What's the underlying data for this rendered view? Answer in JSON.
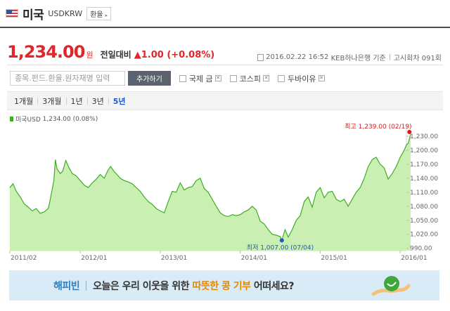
{
  "header": {
    "country": "미국",
    "code": "USDKRW",
    "exchange_button": "환율",
    "flag": "us-flag-icon"
  },
  "quote": {
    "price": "1,234.00",
    "unit": "원",
    "change_label": "전일대비",
    "change": "1.00 (+0.08%)",
    "direction": "up",
    "color_up": "#e0262a"
  },
  "source": {
    "datetime": "2016.02.22 16:52",
    "bank": "KEB하나은행 기준",
    "round": "고시회차 091회"
  },
  "search": {
    "placeholder": "종목.펀드.환율.원자재명 입력",
    "add_button": "추가하기"
  },
  "compare": [
    {
      "label": "국제 금"
    },
    {
      "label": "코스피"
    },
    {
      "label": "두바이유"
    }
  ],
  "periods": [
    {
      "label": "1개월",
      "active": false
    },
    {
      "label": "3개월",
      "active": false
    },
    {
      "label": "1년",
      "active": false
    },
    {
      "label": "3년",
      "active": false
    },
    {
      "label": "5년",
      "active": true
    }
  ],
  "legend": {
    "label": "미국USD",
    "value": "1,234.00 (0.08%)",
    "color": "#3fae25"
  },
  "chart_data": {
    "type": "area",
    "grid": false,
    "ylim": [
      985,
      1245
    ],
    "yticks": [
      990,
      1020,
      1050,
      1080,
      1110,
      1140,
      1170,
      1200,
      1230
    ],
    "ytick_labels": [
      "990.00",
      "1,020.00",
      "1,050.00",
      "1,080.00",
      "1,110.00",
      "1,140.00",
      "1,170.00",
      "1,200.00",
      "1,230.00"
    ],
    "xlim": [
      2011.12,
      2016.06
    ],
    "xticks": [
      2011.12,
      2012.0,
      2013.0,
      2014.0,
      2015.0,
      2016.0
    ],
    "xtick_labels": [
      "2011/02",
      "2012/01",
      "2013/01",
      "2014/01",
      "2015/01",
      "2016/01"
    ],
    "series": [
      {
        "name": "미국USD",
        "color": "#3fae25",
        "fill": "#c9efb2",
        "x": [
          2011.12,
          2011.16,
          2011.2,
          2011.25,
          2011.3,
          2011.35,
          2011.4,
          2011.45,
          2011.5,
          2011.55,
          2011.6,
          2011.62,
          2011.67,
          2011.69,
          2011.71,
          2011.75,
          2011.78,
          2011.82,
          2011.86,
          2011.9,
          2011.95,
          2012.0,
          2012.05,
          2012.1,
          2012.15,
          2012.2,
          2012.25,
          2012.3,
          2012.35,
          2012.38,
          2012.42,
          2012.46,
          2012.5,
          2012.55,
          2012.6,
          2012.65,
          2012.7,
          2012.75,
          2012.8,
          2012.85,
          2012.9,
          2012.95,
          2013.0,
          2013.05,
          2013.1,
          2013.15,
          2013.2,
          2013.25,
          2013.3,
          2013.35,
          2013.4,
          2013.45,
          2013.5,
          2013.55,
          2013.6,
          2013.65,
          2013.7,
          2013.75,
          2013.8,
          2013.85,
          2013.9,
          2013.95,
          2014.0,
          2014.05,
          2014.1,
          2014.15,
          2014.2,
          2014.25,
          2014.3,
          2014.35,
          2014.4,
          2014.45,
          2014.5,
          2014.52,
          2014.56,
          2014.6,
          2014.65,
          2014.7,
          2014.75,
          2014.8,
          2014.85,
          2014.9,
          2014.95,
          2015.0,
          2015.05,
          2015.1,
          2015.15,
          2015.2,
          2015.25,
          2015.3,
          2015.35,
          2015.4,
          2015.45,
          2015.5,
          2015.55,
          2015.6,
          2015.65,
          2015.7,
          2015.75,
          2015.8,
          2015.85,
          2015.9,
          2015.95,
          2016.0,
          2016.05,
          2016.08,
          2016.1,
          2016.13
        ],
        "y": [
          1120,
          1128,
          1112,
          1100,
          1085,
          1078,
          1070,
          1075,
          1065,
          1068,
          1075,
          1090,
          1135,
          1180,
          1160,
          1150,
          1155,
          1178,
          1162,
          1150,
          1145,
          1135,
          1125,
          1120,
          1130,
          1138,
          1148,
          1140,
          1158,
          1165,
          1155,
          1148,
          1140,
          1135,
          1132,
          1128,
          1120,
          1112,
          1100,
          1090,
          1084,
          1075,
          1070,
          1066,
          1090,
          1112,
          1110,
          1130,
          1115,
          1120,
          1122,
          1135,
          1140,
          1118,
          1110,
          1095,
          1080,
          1066,
          1060,
          1058,
          1062,
          1060,
          1062,
          1068,
          1072,
          1080,
          1072,
          1048,
          1042,
          1030,
          1020,
          1018,
          1015,
          1007,
          1030,
          1014,
          1030,
          1050,
          1060,
          1090,
          1100,
          1078,
          1110,
          1120,
          1098,
          1110,
          1112,
          1095,
          1090,
          1095,
          1080,
          1095,
          1110,
          1120,
          1140,
          1165,
          1180,
          1185,
          1170,
          1162,
          1138,
          1150,
          1165,
          1185,
          1200,
          1212,
          1215,
          1234
        ]
      }
    ],
    "annotations": [
      {
        "kind": "max",
        "label": "최고",
        "value": "1,239.00",
        "date": "(02/19)",
        "x": 2016.115,
        "y": 1239,
        "color": "#d31b1b"
      },
      {
        "kind": "min",
        "label": "최저",
        "value": "1,007.00",
        "date": "(07/04)",
        "x": 2014.52,
        "y": 1007,
        "color": "#2358b5"
      }
    ]
  },
  "banner": {
    "brand": "해피빈",
    "text_before": "오늘은 우리 이웃을 위한 ",
    "highlight": "따뜻한 콩 기부",
    "text_after": " 어떠세요?",
    "background": "#d8ebf7"
  }
}
